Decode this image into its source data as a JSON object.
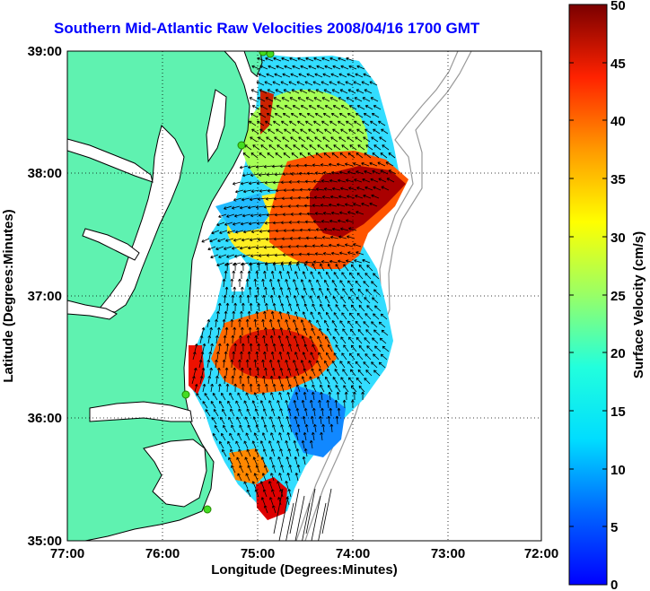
{
  "title": "Southern Mid-Atlantic Raw Velocities 2008/04/16 1700 GMT",
  "xaxis": {
    "label": "Longitude (Degrees:Minutes)",
    "ticks": [
      "77:00",
      "76:00",
      "75:00",
      "74:00",
      "73:00",
      "72:00"
    ]
  },
  "yaxis": {
    "label": "Latitude (Degrees:Minutes)",
    "ticks": [
      "39:00",
      "38:00",
      "37:00",
      "36:00",
      "35:00"
    ]
  },
  "colorbar": {
    "label": "Surface Velocity (cm/s)",
    "ticks": [
      "50",
      "45",
      "40",
      "35",
      "30",
      "25",
      "20",
      "15",
      "10",
      "5",
      "0"
    ],
    "min": 0,
    "max": 50,
    "colormap": "jet"
  },
  "map": {
    "lon_range": [
      -77,
      -72
    ],
    "lat_range": [
      35,
      39
    ],
    "grid": "dotted",
    "land_color": "#5ff2b0",
    "coastline_color": "#000000",
    "bathymetry_color": "#999999",
    "station_color": "#44dd22"
  },
  "chart_data": {
    "type": "heatmap",
    "title": "Southern Mid-Atlantic Raw Velocities 2008/04/16 1700 GMT",
    "xlabel": "Longitude (Degrees:Minutes)",
    "ylabel": "Latitude (Degrees:Minutes)",
    "xlim": [
      -77,
      -72
    ],
    "ylim": [
      35,
      39
    ],
    "colorbar_label": "Surface Velocity (cm/s)",
    "clim": [
      0,
      50
    ],
    "vectors": "arrows"
  }
}
